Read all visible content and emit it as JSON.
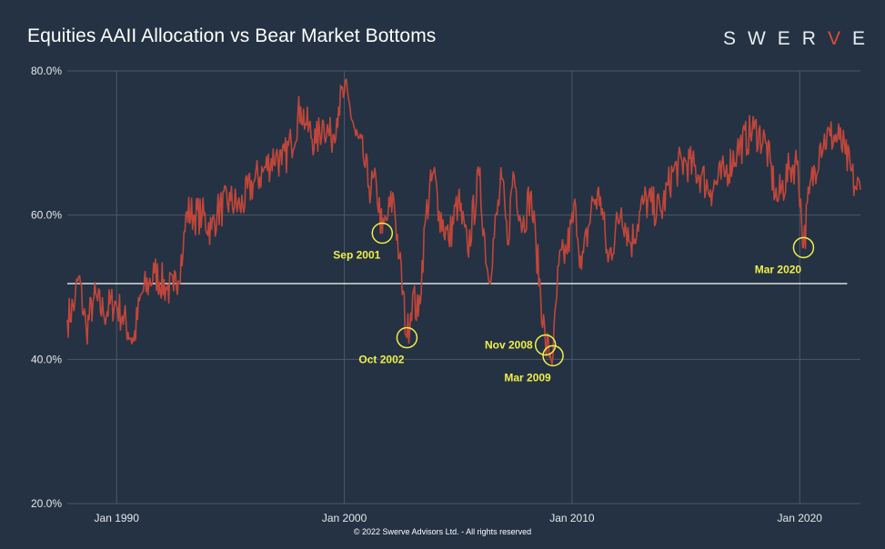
{
  "header": {
    "title": "Equities AAII Allocation vs Bear Market Bottoms",
    "logo_letters": [
      "S",
      "W",
      "E",
      "R",
      "V",
      "E"
    ],
    "logo_accent_index": 4
  },
  "footer": {
    "text": "© 2022 Swerve Advisors Ltd. - All rights reserved"
  },
  "colors": {
    "background": "#243243",
    "grid": "#4a5868",
    "series": "#c0463a",
    "reference_line": "#ffffff",
    "annotation": "#f0ef4a",
    "logo_accent": "#e24a3b"
  },
  "chart_data": {
    "type": "line",
    "title": "Equities AAII Allocation vs Bear Market Bottoms",
    "xlabel": "",
    "ylabel": "",
    "ylim": [
      20,
      80
    ],
    "xlim": [
      "1987-11",
      "2022-09"
    ],
    "grid": true,
    "legend": "none",
    "y_ticks": [
      "20.0%",
      "40.0%",
      "60.0%",
      "80.0%"
    ],
    "y_tick_values": [
      20,
      40,
      60,
      80
    ],
    "x_ticks": [
      "Jan 1990",
      "Jan 2000",
      "Jan 2010",
      "Jan 2020"
    ],
    "x_tick_values": [
      "1990-01",
      "2000-01",
      "2010-01",
      "2020-01"
    ],
    "reference_line": {
      "value": 50.5,
      "from": "1987-11",
      "to": "2022-02"
    },
    "series": [
      {
        "points": [
          [
            "1987-11",
            45.5
          ],
          [
            "1988-03",
            48.0
          ],
          [
            "1988-05",
            51.5
          ],
          [
            "1988-09",
            44.0
          ],
          [
            "1989-01",
            48.5
          ],
          [
            "1989-06",
            46.5
          ],
          [
            "1989-12",
            48.0
          ],
          [
            "1990-04",
            46.0
          ],
          [
            "1990-10",
            42.5
          ],
          [
            "1991-02",
            49.0
          ],
          [
            "1991-06",
            50.5
          ],
          [
            "1991-09",
            52.0
          ],
          [
            "1992-03",
            50.0
          ],
          [
            "1992-07",
            49.5
          ],
          [
            "1992-12",
            55.0
          ],
          [
            "1993-02",
            60.5
          ],
          [
            "1993-06",
            60.0
          ],
          [
            "1993-10",
            60.0
          ],
          [
            "1994-03",
            58.0
          ],
          [
            "1994-06",
            60.5
          ],
          [
            "1995-01",
            62.0
          ],
          [
            "1995-06",
            61.0
          ],
          [
            "1996-01",
            64.5
          ],
          [
            "1996-06",
            66.0
          ],
          [
            "1997-01",
            68.5
          ],
          [
            "1997-04",
            67.0
          ],
          [
            "1997-09",
            70.0
          ],
          [
            "1998-02",
            75.0
          ],
          [
            "1998-05",
            72.5
          ],
          [
            "1998-10",
            70.0
          ],
          [
            "1999-02",
            73.0
          ],
          [
            "1999-06",
            70.5
          ],
          [
            "1999-10",
            75.0
          ],
          [
            "2000-01",
            77.0
          ],
          [
            "2000-04",
            75.0
          ],
          [
            "2000-07",
            71.0
          ],
          [
            "2000-11",
            68.0
          ],
          [
            "2001-02",
            64.0
          ],
          [
            "2001-06",
            64.0
          ],
          [
            "2001-09",
            57.5
          ],
          [
            "2001-12",
            60.0
          ],
          [
            "2002-03",
            62.5
          ],
          [
            "2002-06",
            54.0
          ],
          [
            "2002-10",
            43.0
          ],
          [
            "2003-01",
            49.0
          ],
          [
            "2003-04",
            46.0
          ],
          [
            "2003-08",
            60.0
          ],
          [
            "2003-12",
            66.0
          ],
          [
            "2004-03",
            60.5
          ],
          [
            "2004-08",
            56.5
          ],
          [
            "2005-01",
            62.0
          ],
          [
            "2005-06",
            55.0
          ],
          [
            "2005-12",
            65.5
          ],
          [
            "2006-05",
            51.0
          ],
          [
            "2006-12",
            65.0
          ],
          [
            "2007-03",
            56.0
          ],
          [
            "2007-06",
            66.0
          ],
          [
            "2007-11",
            58.5
          ],
          [
            "2008-03",
            63.0
          ],
          [
            "2008-06",
            56.0
          ],
          [
            "2008-11",
            42.0
          ],
          [
            "2009-03",
            40.5
          ],
          [
            "2009-06",
            53.0
          ],
          [
            "2009-10",
            55.0
          ],
          [
            "2010-03",
            61.0
          ],
          [
            "2010-06",
            52.5
          ],
          [
            "2010-12",
            62.0
          ],
          [
            "2011-04",
            62.5
          ],
          [
            "2011-08",
            53.5
          ],
          [
            "2012-03",
            61.0
          ],
          [
            "2012-08",
            56.0
          ],
          [
            "2013-03",
            62.0
          ],
          [
            "2013-12",
            60.5
          ],
          [
            "2014-06",
            66.0
          ],
          [
            "2015-01",
            67.5
          ],
          [
            "2015-09",
            65.5
          ],
          [
            "2016-02",
            63.5
          ],
          [
            "2016-10",
            66.0
          ],
          [
            "2017-04",
            69.0
          ],
          [
            "2018-01",
            72.0
          ],
          [
            "2018-07",
            70.0
          ],
          [
            "2019-01",
            62.0
          ],
          [
            "2019-08",
            66.5
          ],
          [
            "2019-12",
            67.5
          ],
          [
            "2020-03",
            55.5
          ],
          [
            "2020-06",
            63.0
          ],
          [
            "2020-12",
            70.0
          ],
          [
            "2021-05",
            71.0
          ],
          [
            "2021-10",
            70.5
          ],
          [
            "2022-01",
            68.5
          ],
          [
            "2022-06",
            64.0
          ],
          [
            "2022-09",
            63.5
          ]
        ]
      }
    ],
    "annotations": [
      {
        "label": "Sep 2001",
        "x": "2001-09",
        "y": 57.5,
        "label_side": "below-left"
      },
      {
        "label": "Oct 2002",
        "x": "2002-10",
        "y": 43.0,
        "label_side": "below-left"
      },
      {
        "label": "Nov 2008",
        "x": "2008-11",
        "y": 42.0,
        "label_side": "left"
      },
      {
        "label": "Mar 2009",
        "x": "2009-03",
        "y": 40.5,
        "label_side": "below-left"
      },
      {
        "label": "Mar 2020",
        "x": "2020-03",
        "y": 55.5,
        "label_side": "below-left"
      }
    ]
  }
}
